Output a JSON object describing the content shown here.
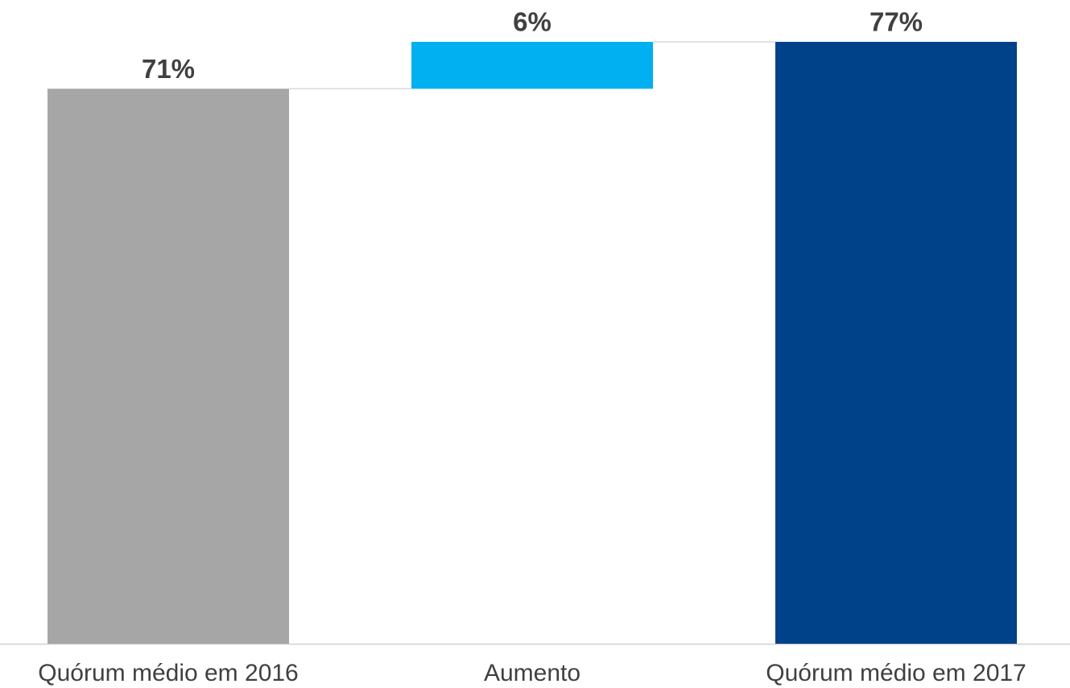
{
  "chart_data": {
    "type": "waterfall",
    "categories": [
      "Quórum médio em 2016",
      "Aumento",
      "Quórum médio em 2017"
    ],
    "values": [
      71,
      6,
      77
    ],
    "value_labels": [
      "71%",
      "6%",
      "77%"
    ],
    "measures": [
      "total",
      "relative",
      "total"
    ],
    "colors": [
      "#a6a6a6",
      "#00b0f0",
      "#004289"
    ]
  }
}
